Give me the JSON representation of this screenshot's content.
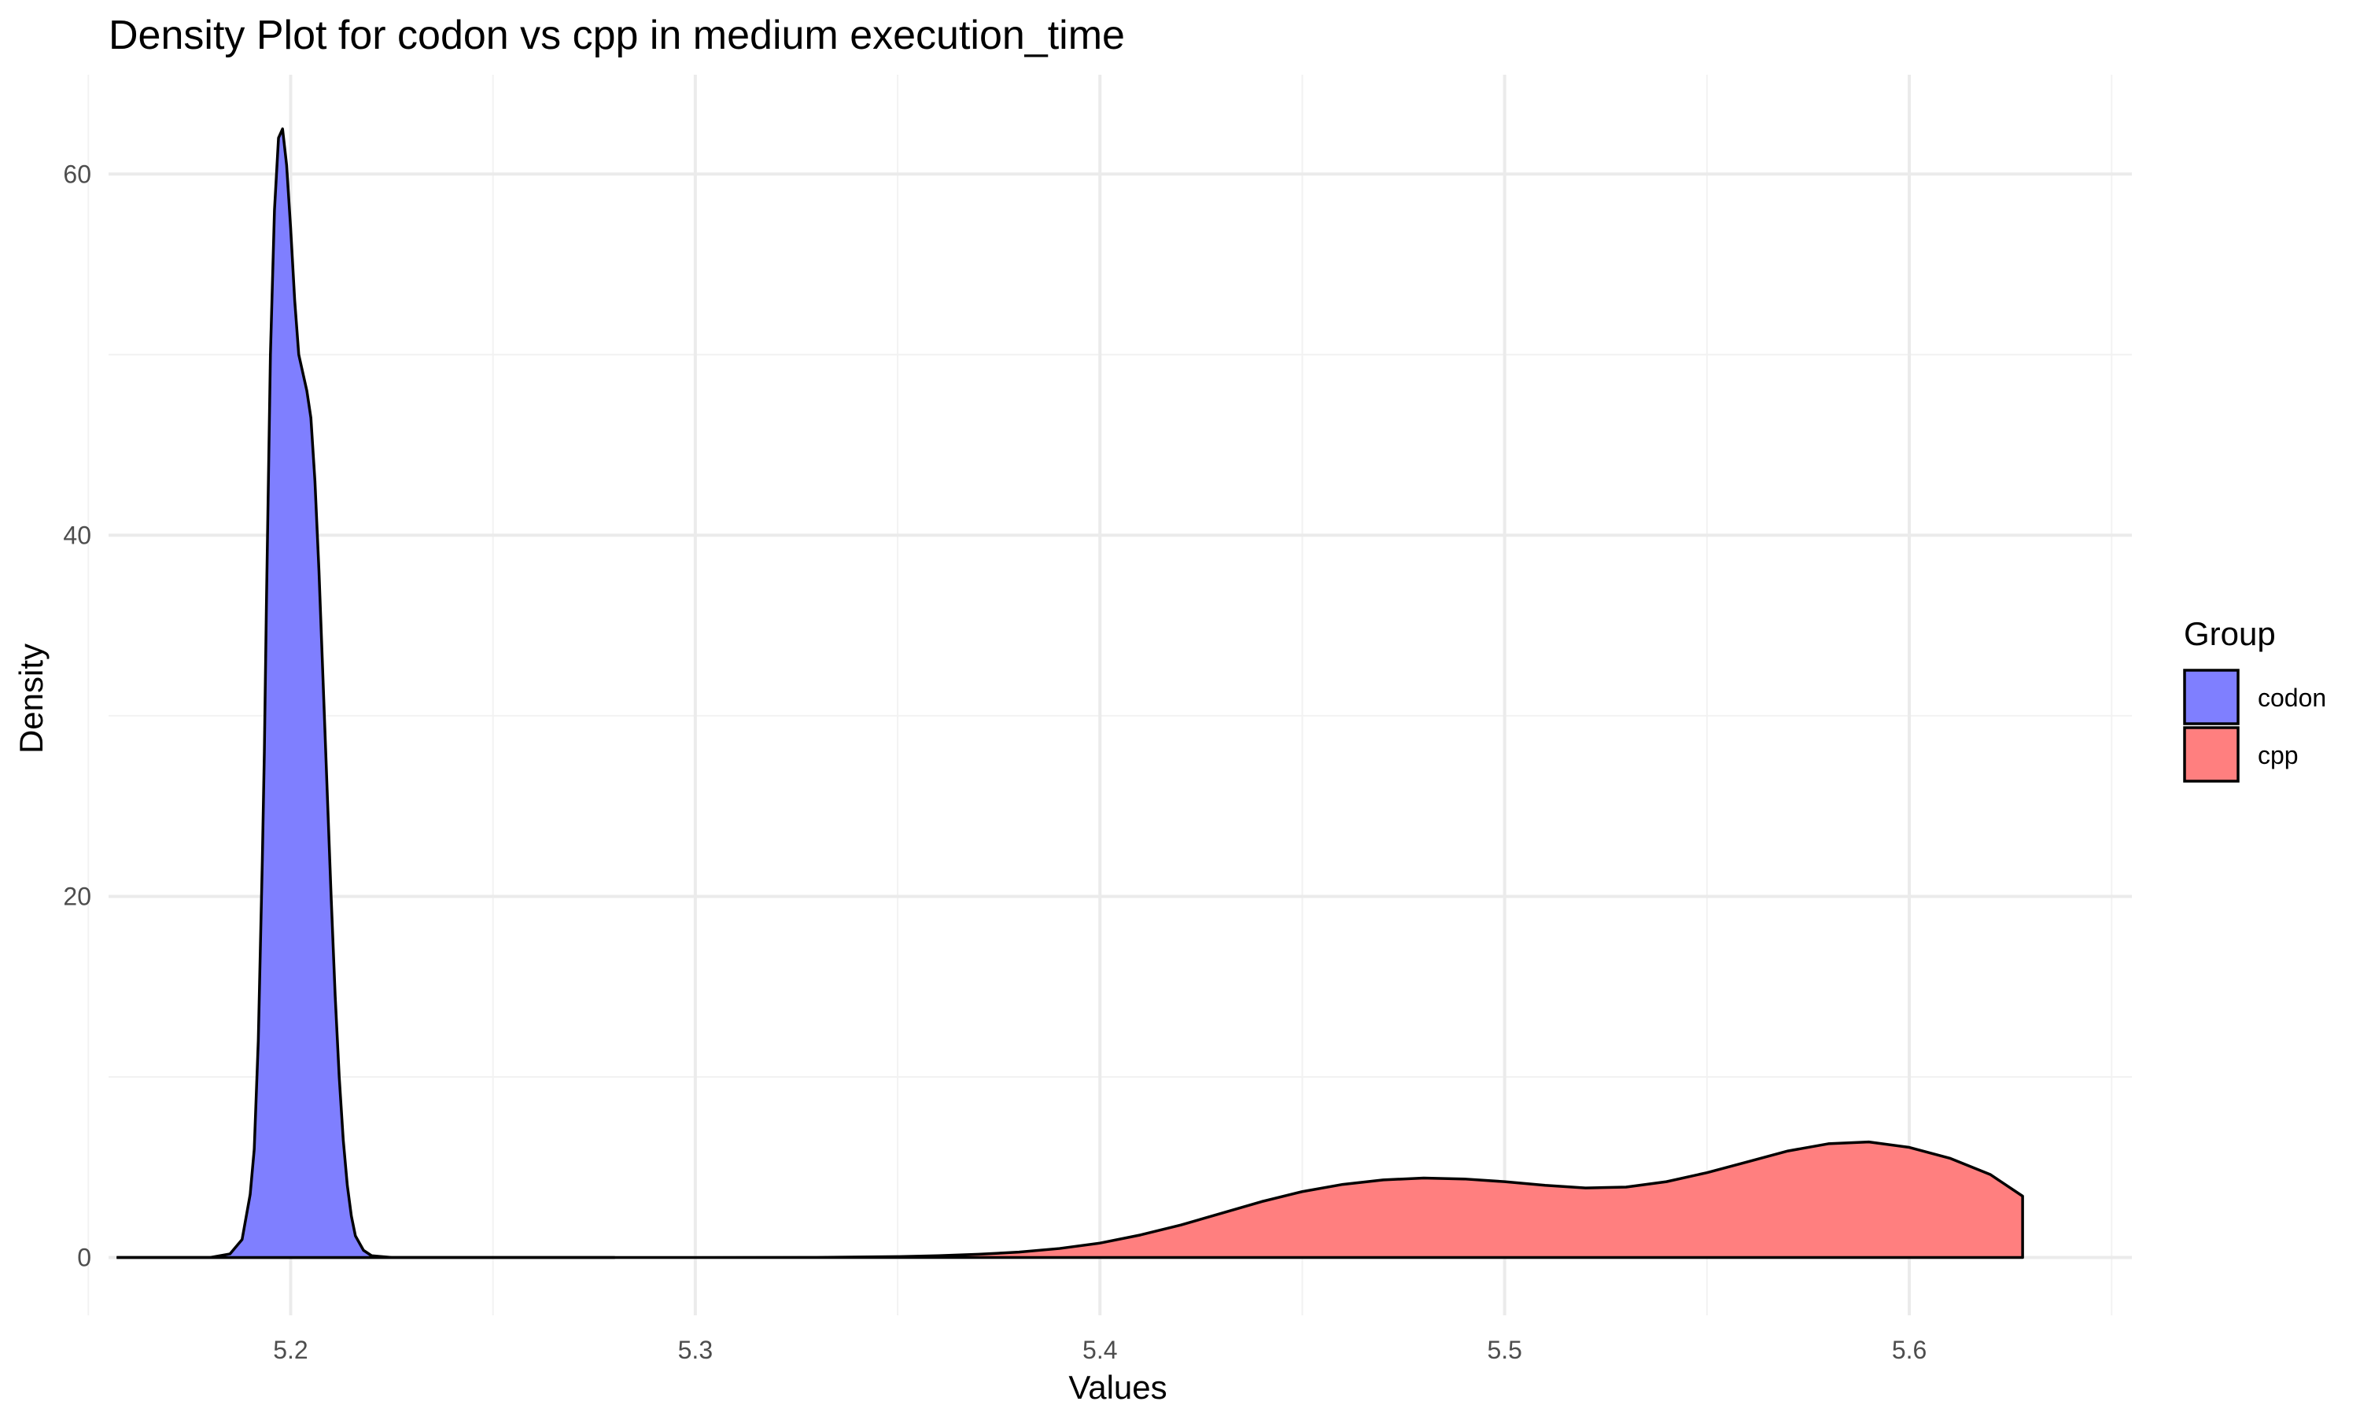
{
  "chart_data": {
    "type": "area",
    "title": "Density Plot for codon vs cpp in medium execution_time",
    "xlabel": "Values",
    "ylabel": "Density",
    "xlim": [
      5.155,
      5.655
    ],
    "ylim": [
      -3.2,
      65.5
    ],
    "x_ticks": [
      5.2,
      5.3,
      5.4,
      5.5,
      5.6
    ],
    "x_tick_labels": [
      "5.2",
      "5.3",
      "5.4",
      "5.5",
      "5.6"
    ],
    "y_ticks": [
      0,
      20,
      40,
      60
    ],
    "y_tick_labels": [
      "0",
      "20",
      "40",
      "60"
    ],
    "grid": true,
    "legend": {
      "title": "Group",
      "position": "right"
    },
    "series": [
      {
        "name": "codon",
        "color": "#7f7fff",
        "x": [
          5.157,
          5.17,
          5.18,
          5.185,
          5.188,
          5.19,
          5.191,
          5.192,
          5.193,
          5.1935,
          5.194,
          5.1945,
          5.195,
          5.196,
          5.197,
          5.198,
          5.199,
          5.2,
          5.201,
          5.202,
          5.203,
          5.204,
          5.205,
          5.206,
          5.207,
          5.208,
          5.209,
          5.21,
          5.211,
          5.212,
          5.213,
          5.214,
          5.215,
          5.216,
          5.218,
          5.22,
          5.225,
          5.24,
          5.26,
          5.28
        ],
        "y": [
          0,
          0,
          0,
          0.2,
          1.0,
          3.5,
          6,
          12,
          22,
          28,
          36,
          43,
          50,
          58,
          62,
          62.5,
          60.5,
          57,
          53,
          50,
          49,
          48,
          46.5,
          43,
          38,
          32,
          26,
          20,
          14.5,
          10,
          6.5,
          4,
          2.3,
          1.2,
          0.4,
          0.1,
          0,
          0,
          0,
          0
        ]
      },
      {
        "name": "cpp",
        "color": "#ff7f7f",
        "x": [
          5.157,
          5.25,
          5.3,
          5.33,
          5.35,
          5.36,
          5.37,
          5.38,
          5.39,
          5.4,
          5.41,
          5.42,
          5.43,
          5.44,
          5.45,
          5.46,
          5.47,
          5.48,
          5.49,
          5.5,
          5.51,
          5.52,
          5.53,
          5.54,
          5.55,
          5.56,
          5.57,
          5.58,
          5.59,
          5.6,
          5.61,
          5.62,
          5.628
        ],
        "y": [
          0,
          0,
          0,
          0.01,
          0.05,
          0.1,
          0.18,
          0.3,
          0.5,
          0.8,
          1.25,
          1.8,
          2.45,
          3.1,
          3.65,
          4.05,
          4.3,
          4.4,
          4.35,
          4.2,
          4.0,
          3.85,
          3.9,
          4.2,
          4.7,
          5.3,
          5.9,
          6.3,
          6.4,
          6.1,
          5.5,
          4.6,
          3.4
        ]
      }
    ]
  }
}
